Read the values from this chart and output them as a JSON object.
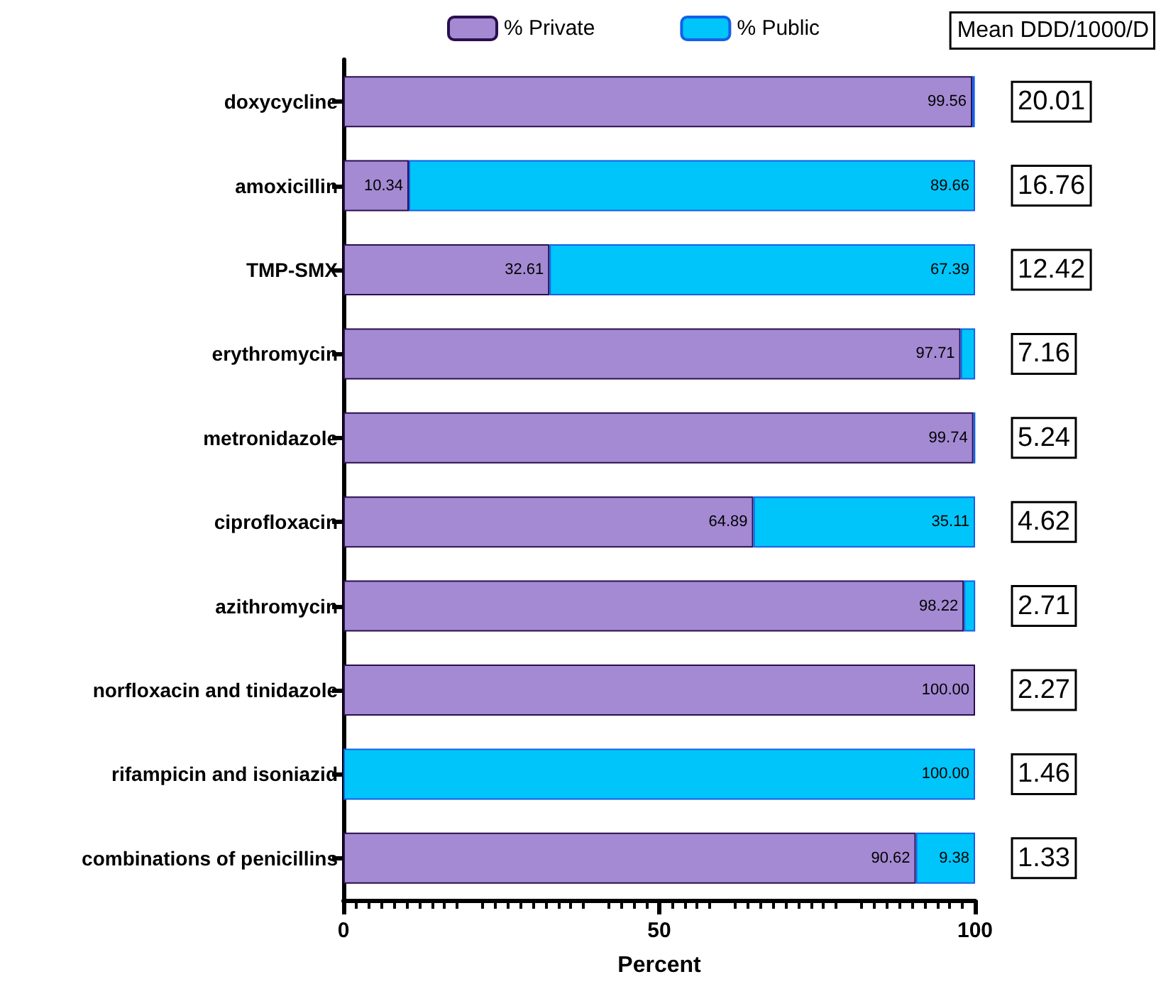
{
  "chart_data": {
    "type": "bar",
    "orientation": "horizontal",
    "stacked": true,
    "xlabel": "Percent",
    "categories": [
      "doxycycline",
      "amoxicillin",
      "TMP-SMX",
      "erythromycin",
      "metronidazole",
      "ciprofloxacin",
      "azithromycin",
      "norfloxacin and tinidazole",
      "rifampicin and isoniazid",
      "combinations of penicillins"
    ],
    "series": [
      {
        "name": "% Private",
        "color": "#a48ad3",
        "values": [
          99.56,
          10.34,
          32.61,
          97.71,
          99.74,
          64.89,
          98.22,
          100,
          0,
          90.62
        ],
        "value_labels": [
          "99.56",
          "10.34",
          "32.61",
          "97.71",
          "99.74",
          "64.89",
          "98.22",
          "100.00",
          null,
          "90.62"
        ]
      },
      {
        "name": "% Public",
        "color": "#00c5fa",
        "values": [
          0.4,
          89.66,
          67.39,
          2.3,
          0.3,
          35.11,
          1.8,
          0,
          100,
          9.38
        ],
        "value_labels": [
          null,
          "89.66",
          "67.39",
          null,
          null,
          "35.11",
          null,
          null,
          "100.00",
          "9.38"
        ]
      }
    ],
    "xlim": [
      0,
      100
    ],
    "xticks": [
      0,
      50,
      100
    ],
    "grid": false,
    "legend": "top",
    "annotations": [
      "Mean DDD/1000/D",
      "20.01",
      "16.76",
      "12.42",
      "7.16",
      "5.24",
      "4.62",
      "2.71",
      "2.27",
      "1.46",
      "1.33"
    ]
  }
}
